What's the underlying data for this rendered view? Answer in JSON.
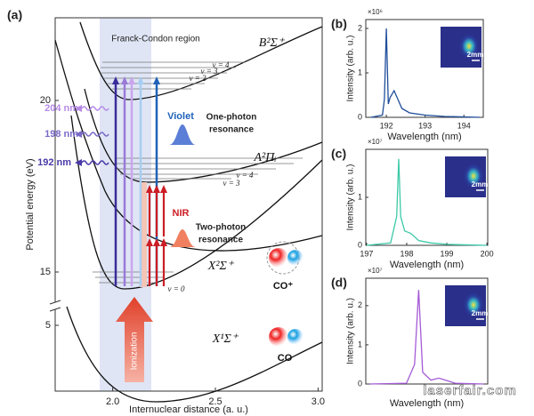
{
  "chart_data": [
    {
      "type": "diagram",
      "label": "(a)",
      "xlabel": "Internuclear distance (a. u.)",
      "ylabel": "Potential energy (eV)",
      "xlim": [
        1.72,
        3.02
      ],
      "xticks": [
        {
          "value": 2,
          "label": "2.0"
        },
        {
          "value": 2.5,
          "label": "2.5"
        },
        {
          "value": 3,
          "label": "3.0"
        }
      ],
      "ylim": [
        0,
        22.4
      ],
      "yticks": [
        5,
        15,
        20
      ],
      "annotations": [
        "Franck-Condon region",
        "B²Σ⁺",
        "v = 4",
        "v = 3",
        "v = 2",
        "204 nm",
        "198 nm",
        "192 nm",
        "Violet",
        "One-photon",
        "resonance",
        "A²Πᵢ",
        "v = 4",
        "v = 3",
        "NIR",
        "Two-photon",
        "resonance",
        "X²Σ⁺",
        "v = 0",
        "CO⁺",
        "Ionization",
        "X¹Σ⁺",
        "CO"
      ]
    },
    {
      "type": "line",
      "label": "(b)",
      "scale_label": "×10⁶",
      "xlabel": "Wavelength (nm)",
      "ylabel": "Intensity (arb. u.)",
      "inset_label": "2mm",
      "color": "#1f4e9a",
      "xlim": [
        191.47,
        194.5
      ],
      "xticks": [
        192,
        193,
        194
      ],
      "ylim": [
        0,
        2.2
      ],
      "yticks": [
        0,
        1,
        2
      ],
      "x": [
        191.6,
        191.9,
        191.95,
        192.0,
        192.05,
        192.1,
        192.2,
        192.3,
        192.4,
        192.6,
        193.0,
        193.5,
        194.0,
        194.4
      ],
      "values": [
        0,
        0.05,
        0.4,
        2.0,
        0.3,
        0.45,
        0.6,
        0.4,
        0.2,
        0.1,
        0.05,
        0.02,
        0.01,
        0
      ]
    },
    {
      "type": "line",
      "label": "(c)",
      "scale_label": "×10⁷",
      "xlabel": "Wavelength (nm)",
      "ylabel": "Intensity (arb. u.)",
      "inset_label": "2mm",
      "color": "#3cc9a8",
      "xlim": [
        196.98,
        200.02
      ],
      "xticks": [
        197,
        198,
        199,
        200
      ],
      "ylim": [
        0,
        2.0
      ],
      "yticks": [
        0,
        1
      ],
      "x": [
        197.0,
        197.6,
        197.75,
        197.8,
        197.85,
        197.95,
        198.1,
        198.3,
        198.6,
        199.0,
        200.0
      ],
      "values": [
        0,
        0.05,
        0.6,
        1.8,
        0.6,
        0.3,
        0.25,
        0.1,
        0.05,
        0.02,
        0
      ]
    },
    {
      "type": "line",
      "label": "(d)",
      "scale_label": "×10⁷",
      "xlabel": "Wavelength (nm)",
      "ylabel": "Intensity (arb. u.)",
      "inset_label": "2mm",
      "color": "#a45bd6",
      "xlim": [
        203.3,
        206.3
      ],
      "ylim": [
        0,
        2.7
      ],
      "yticks": [
        0,
        1,
        2
      ],
      "x": [
        203.4,
        204.3,
        204.5,
        204.6,
        204.7,
        204.9,
        205.1,
        205.5,
        206.2
      ],
      "values": [
        0,
        0.02,
        0.5,
        2.4,
        0.3,
        0.1,
        0.15,
        0.02,
        0
      ]
    }
  ],
  "watermark": "laserfair.com"
}
